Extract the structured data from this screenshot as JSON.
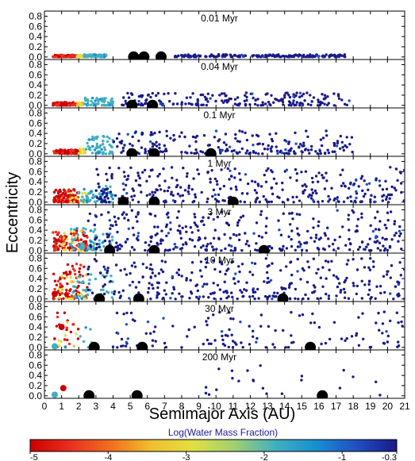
{
  "chart_data": {
    "type": "scatter",
    "xlabel": "Semimajor Axis (AU)",
    "ylabel": "Eccentricity",
    "xlim": [
      0,
      21
    ],
    "ylim": [
      -0.05,
      0.9
    ],
    "xticks": [
      "0",
      "1",
      "2",
      "3",
      "4",
      "5",
      "6",
      "7",
      "8",
      "9",
      "10",
      "11",
      "12",
      "13",
      "14",
      "15",
      "16",
      "17",
      "18",
      "19",
      "20",
      "21"
    ],
    "yticks": [
      "0.0",
      "0.2",
      "0.4",
      "0.6",
      "0.8"
    ],
    "grid": false,
    "colorbar": {
      "title": "Log(Water Mass Fraction)",
      "range": [
        -5,
        -0.3
      ],
      "ticks": [
        "-5",
        "-4",
        "-3",
        "-2",
        "-1",
        "-0.3"
      ],
      "colors": [
        "#cc0000",
        "#e83020",
        "#f07020",
        "#f0c030",
        "#e0e040",
        "#a0d070",
        "#40b0c0",
        "#1890d0",
        "#2050c0",
        "#1a1a8a"
      ]
    },
    "panels": [
      {
        "label": "0.01 Myr",
        "giants": [
          {
            "a": 5.2,
            "e": 0.0
          },
          {
            "a": 5.8,
            "e": 0.0
          },
          {
            "a": 6.8,
            "e": 0.0
          }
        ],
        "embryos": [],
        "regions": [
          {
            "a0": 0.5,
            "a1": 1.9,
            "emax": 0.04,
            "n": 120,
            "w": -4.8
          },
          {
            "a0": 1.9,
            "a1": 2.3,
            "emax": 0.04,
            "n": 20,
            "w": -3.0
          },
          {
            "a0": 2.3,
            "a1": 3.6,
            "emax": 0.05,
            "n": 60,
            "w": -1.8
          },
          {
            "a0": 7.6,
            "a1": 17.8,
            "emax": 0.05,
            "n": 200,
            "w": -0.3
          }
        ]
      },
      {
        "label": "0.04 Myr",
        "giants": [
          {
            "a": 5.1,
            "e": 0.0
          },
          {
            "a": 6.3,
            "e": 0.0
          }
        ],
        "embryos": [],
        "regions": [
          {
            "a0": 0.5,
            "a1": 1.9,
            "emax": 0.06,
            "n": 110,
            "w": -4.8
          },
          {
            "a0": 1.9,
            "a1": 2.3,
            "emax": 0.06,
            "n": 15,
            "w": -3.0
          },
          {
            "a0": 2.3,
            "a1": 4.0,
            "emax": 0.15,
            "n": 60,
            "w": -1.8
          },
          {
            "a0": 4.5,
            "a1": 17.8,
            "emax": 0.25,
            "n": 200,
            "w": -0.3
          }
        ]
      },
      {
        "label": "0.1 Myr",
        "giants": [
          {
            "a": 5.1,
            "e": 0.0
          },
          {
            "a": 6.4,
            "e": 0.0
          },
          {
            "a": 9.7,
            "e": 0.0
          }
        ],
        "embryos": [],
        "regions": [
          {
            "a0": 0.5,
            "a1": 2.0,
            "emax": 0.08,
            "n": 110,
            "w": -4.8
          },
          {
            "a0": 2.0,
            "a1": 2.4,
            "emax": 0.1,
            "n": 15,
            "w": -3.0
          },
          {
            "a0": 2.4,
            "a1": 4.0,
            "emax": 0.35,
            "n": 60,
            "w": -1.8
          },
          {
            "a0": 4.0,
            "a1": 18.0,
            "emax": 0.45,
            "n": 220,
            "w": -0.3
          }
        ]
      },
      {
        "label": "1 Myr",
        "giants": [
          {
            "a": 4.6,
            "e": 0.0
          },
          {
            "a": 6.4,
            "e": 0.0
          },
          {
            "a": 11.0,
            "e": 0.0
          }
        ],
        "embryos": [],
        "regions": [
          {
            "a0": 0.5,
            "a1": 2.0,
            "emax": 0.25,
            "n": 110,
            "w": -4.8
          },
          {
            "a0": 1.5,
            "a1": 2.5,
            "emax": 0.2,
            "n": 20,
            "w": -3.0
          },
          {
            "a0": 2.0,
            "a1": 4.0,
            "emax": 0.35,
            "n": 60,
            "w": -1.8
          },
          {
            "a0": 3.0,
            "a1": 21.0,
            "emax": 0.7,
            "n": 330,
            "w": -0.3
          }
        ]
      },
      {
        "label": "3 Myr",
        "giants": [
          {
            "a": 3.8,
            "e": 0.0
          },
          {
            "a": 6.4,
            "e": 0.0
          },
          {
            "a": 12.8,
            "e": 0.0
          }
        ],
        "embryos": [],
        "regions": [
          {
            "a0": 0.5,
            "a1": 2.5,
            "emax": 0.4,
            "n": 110,
            "w": -4.8
          },
          {
            "a0": 1.0,
            "a1": 3.0,
            "emax": 0.4,
            "n": 25,
            "w": -3.0
          },
          {
            "a0": 1.5,
            "a1": 4.0,
            "emax": 0.45,
            "n": 60,
            "w": -1.8
          },
          {
            "a0": 2.5,
            "a1": 21.0,
            "emax": 0.8,
            "n": 340,
            "w": -0.3
          }
        ]
      },
      {
        "label": "10 Myr",
        "giants": [
          {
            "a": 3.2,
            "e": 0.0
          },
          {
            "a": 5.5,
            "e": 0.0
          },
          {
            "a": 13.9,
            "e": 0.0
          }
        ],
        "embryos": [
          {
            "a": 0.6,
            "e": 0.1,
            "w": -4.8
          }
        ],
        "regions": [
          {
            "a0": 0.5,
            "a1": 2.5,
            "emax": 0.7,
            "n": 90,
            "w": -4.8
          },
          {
            "a0": 0.8,
            "a1": 2.5,
            "emax": 0.5,
            "n": 20,
            "w": -3.0
          },
          {
            "a0": 1.5,
            "a1": 4.0,
            "emax": 0.5,
            "n": 40,
            "w": -1.8
          },
          {
            "a0": 2.5,
            "a1": 21.0,
            "emax": 0.8,
            "n": 310,
            "w": -0.3
          }
        ]
      },
      {
        "label": "30 Myr",
        "giants": [
          {
            "a": 2.9,
            "e": 0.0
          },
          {
            "a": 5.7,
            "e": 0.0
          },
          {
            "a": 15.5,
            "e": 0.0
          }
        ],
        "embryos": [
          {
            "a": 0.6,
            "e": 0.02,
            "w": -1.8
          },
          {
            "a": 1.0,
            "e": 0.4,
            "w": -4.8
          }
        ],
        "regions": [
          {
            "a0": 0.5,
            "a1": 2.0,
            "emax": 0.7,
            "n": 20,
            "w": -4.8
          },
          {
            "a0": 0.8,
            "a1": 2.0,
            "emax": 0.5,
            "n": 8,
            "w": -3.0
          },
          {
            "a0": 1.0,
            "a1": 3.0,
            "emax": 0.5,
            "n": 8,
            "w": -1.8
          },
          {
            "a0": 4.0,
            "a1": 21.0,
            "emax": 0.7,
            "n": 130,
            "w": -0.3
          }
        ]
      },
      {
        "label": "200 Myr",
        "giants": [
          {
            "a": 2.6,
            "e": 0.0
          },
          {
            "a": 5.4,
            "e": 0.0
          },
          {
            "a": 16.2,
            "e": 0.0
          }
        ],
        "embryos": [
          {
            "a": 0.6,
            "e": 0.02,
            "w": -1.8
          },
          {
            "a": 1.1,
            "e": 0.15,
            "w": -4.8
          }
        ],
        "regions": [
          {
            "a0": 8.0,
            "a1": 21.0,
            "emax": 0.6,
            "n": 22,
            "w": -0.3
          }
        ]
      }
    ]
  }
}
